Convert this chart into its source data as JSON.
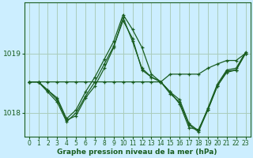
{
  "xlabel": "Graphe pression niveau de la mer (hPa)",
  "background_color": "#cceeff",
  "grid_color": "#aaccbb",
  "line_color": "#1a5e20",
  "xlim": [
    -0.5,
    23.5
  ],
  "ylim": [
    1017.6,
    1019.85
  ],
  "yticks": [
    1018,
    1019
  ],
  "xticks": [
    0,
    1,
    2,
    3,
    4,
    5,
    6,
    7,
    8,
    9,
    10,
    11,
    12,
    13,
    14,
    15,
    16,
    17,
    18,
    19,
    20,
    21,
    22,
    23
  ],
  "series": [
    [
      1018.52,
      1018.52,
      1018.52,
      1018.52,
      1018.52,
      1018.52,
      1018.52,
      1018.52,
      1018.52,
      1018.52,
      1018.52,
      1018.52,
      1018.52,
      1018.52,
      1018.52,
      1018.65,
      1018.65,
      1018.65,
      1018.65,
      1018.75,
      1018.82,
      1018.88,
      1018.88,
      1019.0
    ],
    [
      1018.52,
      1018.52,
      1018.38,
      1018.22,
      1017.88,
      1017.95,
      1018.25,
      1018.45,
      1018.75,
      1019.1,
      1019.6,
      1019.2,
      1018.75,
      1018.6,
      1018.52,
      1018.35,
      1018.15,
      1017.75,
      1017.72,
      1018.05,
      1018.45,
      1018.68,
      1018.72,
      1019.0
    ],
    [
      1018.52,
      1018.52,
      1018.38,
      1018.25,
      1017.9,
      1018.05,
      1018.35,
      1018.6,
      1018.9,
      1019.2,
      1019.65,
      1019.4,
      1019.1,
      1018.65,
      1018.52,
      1018.35,
      1018.22,
      1017.82,
      1017.7,
      1018.08,
      1018.48,
      1018.72,
      1018.75,
      1019.02
    ],
    [
      1018.52,
      1018.52,
      1018.35,
      1018.18,
      1017.85,
      1018.0,
      1018.28,
      1018.52,
      1018.82,
      1019.12,
      1019.55,
      1019.25,
      1018.72,
      1018.6,
      1018.52,
      1018.32,
      1018.18,
      1017.8,
      1017.68,
      1018.05,
      1018.45,
      1018.7,
      1018.72,
      1019.0
    ]
  ]
}
